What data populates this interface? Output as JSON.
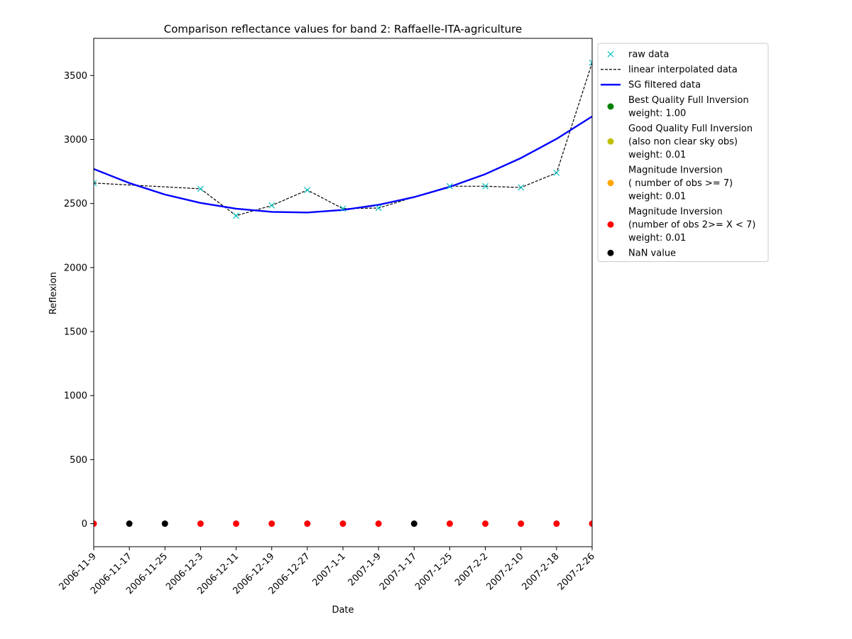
{
  "chart_data": {
    "type": "line",
    "title": "Comparison reflectance values for band 2: Raffaelle-ITA-agriculture",
    "xlabel": "Date",
    "ylabel": "Reflexion",
    "x_tick_labels": [
      "2006-11-9",
      "2006-11-17",
      "2006-11-25",
      "2006-12-3",
      "2006-12-11",
      "2006-12-19",
      "2006-12-27",
      "2007-1-1",
      "2007-1-9",
      "2007-1-17",
      "2007-1-25",
      "2007-2-2",
      "2007-2-10",
      "2007-2-18",
      "2007-2-26"
    ],
    "y_ticks": [
      0,
      500,
      1000,
      1500,
      2000,
      2500,
      3000,
      3500
    ],
    "ylim": [
      -180,
      3790
    ],
    "grid": false,
    "legend_position": "outside right",
    "series": [
      {
        "name": "raw data",
        "kind": "marker-x",
        "color": "#00bfbf",
        "points": [
          {
            "x": "2006-11-9",
            "y": 2660
          },
          {
            "x": "2006-12-3",
            "y": 2615
          },
          {
            "x": "2006-12-11",
            "y": 2405
          },
          {
            "x": "2006-12-19",
            "y": 2485
          },
          {
            "x": "2006-12-27",
            "y": 2605
          },
          {
            "x": "2007-1-1",
            "y": 2460
          },
          {
            "x": "2007-1-9",
            "y": 2465
          },
          {
            "x": "2007-1-25",
            "y": 2635
          },
          {
            "x": "2007-2-2",
            "y": 2635
          },
          {
            "x": "2007-2-10",
            "y": 2625
          },
          {
            "x": "2007-2-18",
            "y": 2740
          },
          {
            "x": "2007-2-26",
            "y": 3600
          }
        ]
      },
      {
        "name": "linear interpolated data",
        "kind": "dashed-line",
        "color": "#000000",
        "values": [
          2660,
          2645,
          2630,
          2615,
          2405,
          2485,
          2605,
          2460,
          2465,
          2550,
          2635,
          2635,
          2625,
          2740,
          3600
        ]
      },
      {
        "name": "SG filtered data",
        "kind": "line",
        "color": "#0000ff",
        "values": [
          2770,
          2660,
          2570,
          2505,
          2460,
          2435,
          2430,
          2450,
          2490,
          2550,
          2630,
          2730,
          2855,
          3005,
          3180
        ]
      }
    ],
    "quality_points": {
      "y": 0,
      "colors": [
        "#ff0000",
        "#000000",
        "#000000",
        "#ff0000",
        "#ff0000",
        "#ff0000",
        "#ff0000",
        "#ff0000",
        "#ff0000",
        "#000000",
        "#ff0000",
        "#ff0000",
        "#ff0000",
        "#ff0000",
        "#ff0000"
      ]
    },
    "legend": [
      {
        "type": "x",
        "color": "#00bfbf",
        "lines": [
          "raw data"
        ]
      },
      {
        "type": "dash",
        "color": "#000000",
        "lines": [
          "linear interpolated data"
        ]
      },
      {
        "type": "line",
        "color": "#0000ff",
        "lines": [
          "SG filtered data"
        ]
      },
      {
        "type": "dot",
        "color": "#008000",
        "lines": [
          "Best Quality Full Inversion",
          "weight: 1.00"
        ]
      },
      {
        "type": "dot",
        "color": "#bfbf00",
        "lines": [
          "Good Quality Full Inversion",
          "(also non clear sky obs)",
          "weight: 0.01"
        ]
      },
      {
        "type": "dot",
        "color": "#ffa500",
        "lines": [
          "Magnitude Inversion",
          "( number of obs >= 7)",
          "weight: 0.01"
        ]
      },
      {
        "type": "dot",
        "color": "#ff0000",
        "lines": [
          "Magnitude Inversion",
          "(number of obs 2>= X < 7)",
          "weight: 0.01"
        ]
      },
      {
        "type": "dot",
        "color": "#000000",
        "lines": [
          "NaN value"
        ]
      }
    ]
  }
}
